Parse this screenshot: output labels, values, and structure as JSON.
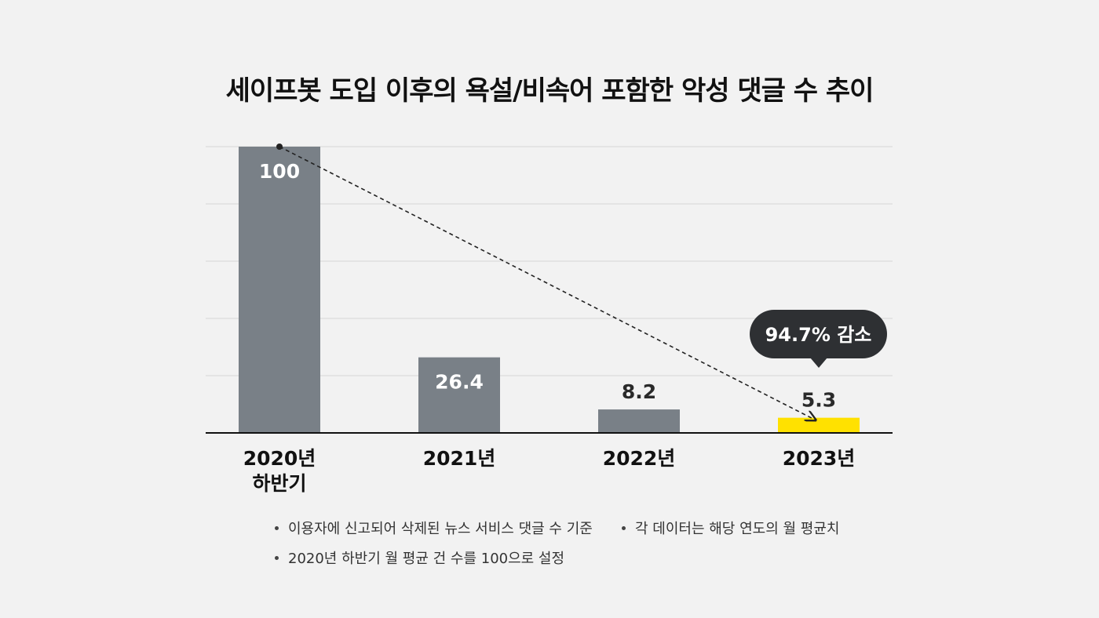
{
  "title": "세이프봇 도입 이후의 욕설/비속어 포함한 악성 댓글 수 추이",
  "callout": "94.7% 감소",
  "colors": {
    "bar_default": "#798087",
    "bar_highlight": "#ffe100",
    "callout_bg": "#2e3033",
    "gridline": "#d7d7d7",
    "axis": "#111111"
  },
  "notes": [
    "이용자에 신고되어 삭제된 뉴스 서비스 댓글 수 기준",
    "각 데이터는 해당 연도의 월 평균치",
    "2020년 하반기 월 평균 건 수를 100으로 설정"
  ],
  "chart_data": {
    "type": "bar",
    "categories": [
      [
        "2020년",
        "하반기"
      ],
      [
        "2021년"
      ],
      [
        "2022년"
      ],
      [
        "2023년"
      ]
    ],
    "values": [
      100,
      26.4,
      8.2,
      5.3
    ],
    "value_labels": [
      "100",
      "26.4",
      "8.2",
      "5.3"
    ],
    "highlight_index": 3,
    "ylim": [
      0,
      100
    ],
    "grid": true,
    "trend_arrow": {
      "from": 0,
      "to": 3,
      "style": "dashed"
    }
  }
}
